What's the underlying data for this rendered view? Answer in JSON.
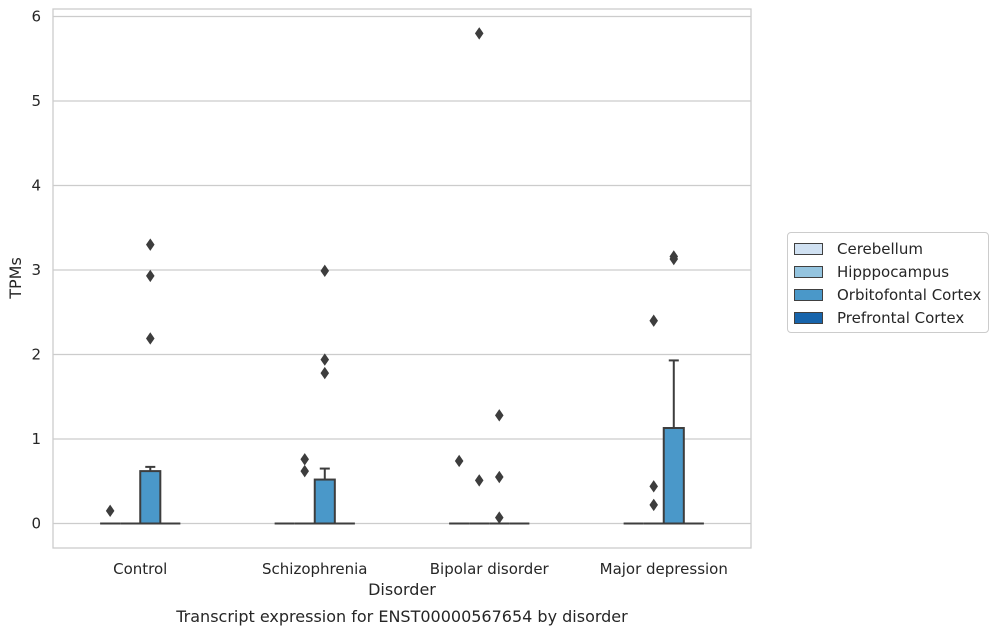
{
  "chart_data": {
    "type": "box",
    "title": "Transcript expression for ENST00000567654 by disorder",
    "xlabel": "Disorder",
    "ylabel": "TPMs",
    "ylim": [
      -0.28,
      6.1
    ],
    "yticks": [
      0,
      1,
      2,
      3,
      4,
      5,
      6
    ],
    "grid": true,
    "legend_position": "right",
    "categories": [
      "Control",
      "Schizophrenia",
      "Bipolar disorder",
      "Major depression"
    ],
    "series": [
      {
        "name": "Cerebellum",
        "color": "#d0e1f2",
        "boxes": [
          {
            "q1": 0,
            "median": 0,
            "q3": 0,
            "whislo": 0,
            "whishi": 0,
            "fliers": [
              0.15
            ]
          },
          {
            "q1": 0,
            "median": 0,
            "q3": 0,
            "whislo": 0,
            "whishi": 0,
            "fliers": []
          },
          {
            "q1": 0,
            "median": 0,
            "q3": 0,
            "whislo": 0,
            "whishi": 0,
            "fliers": [
              0.74
            ]
          },
          {
            "q1": 0,
            "median": 0,
            "q3": 0,
            "whislo": 0,
            "whishi": 0,
            "fliers": []
          }
        ]
      },
      {
        "name": "Hipppocampus",
        "color": "#94c4df",
        "boxes": [
          {
            "q1": 0,
            "median": 0,
            "q3": 0,
            "whislo": 0,
            "whishi": 0,
            "fliers": []
          },
          {
            "q1": 0,
            "median": 0,
            "q3": 0,
            "whislo": 0,
            "whishi": 0,
            "fliers": [
              0.76,
              0.62
            ]
          },
          {
            "q1": 0,
            "median": 0,
            "q3": 0,
            "whislo": 0,
            "whishi": 0,
            "fliers": [
              5.8,
              0.51
            ]
          },
          {
            "q1": 0,
            "median": 0,
            "q3": 0,
            "whislo": 0,
            "whishi": 0,
            "fliers": [
              2.4,
              0.44,
              0.22
            ]
          }
        ]
      },
      {
        "name": "Orbitofontal Cortex",
        "color": "#4a98c9",
        "boxes": [
          {
            "q1": 0,
            "median": 0,
            "q3": 0.62,
            "whislo": 0,
            "whishi": 0.67,
            "fliers": [
              3.3,
              2.93,
              2.19
            ]
          },
          {
            "q1": 0,
            "median": 0,
            "q3": 0.52,
            "whislo": 0,
            "whishi": 0.65,
            "fliers": [
              2.99,
              1.94,
              1.78
            ]
          },
          {
            "q1": 0,
            "median": 0,
            "q3": 0,
            "whislo": 0,
            "whishi": 0,
            "fliers": [
              1.28,
              0.55,
              0.07
            ]
          },
          {
            "q1": 0,
            "median": 0,
            "q3": 1.13,
            "whislo": 0,
            "whishi": 1.93,
            "fliers": [
              3.16,
              3.13
            ]
          }
        ]
      },
      {
        "name": "Prefrontal Cortex",
        "color": "#1764ab",
        "boxes": [
          {
            "q1": 0,
            "median": 0,
            "q3": 0,
            "whislo": 0,
            "whishi": 0,
            "fliers": []
          },
          {
            "q1": 0,
            "median": 0,
            "q3": 0,
            "whislo": 0,
            "whishi": 0,
            "fliers": []
          },
          {
            "q1": 0,
            "median": 0,
            "q3": 0,
            "whislo": 0,
            "whishi": 0,
            "fliers": []
          },
          {
            "q1": 0,
            "median": 0,
            "q3": 0,
            "whislo": 0,
            "whishi": 0,
            "fliers": []
          }
        ]
      }
    ]
  }
}
